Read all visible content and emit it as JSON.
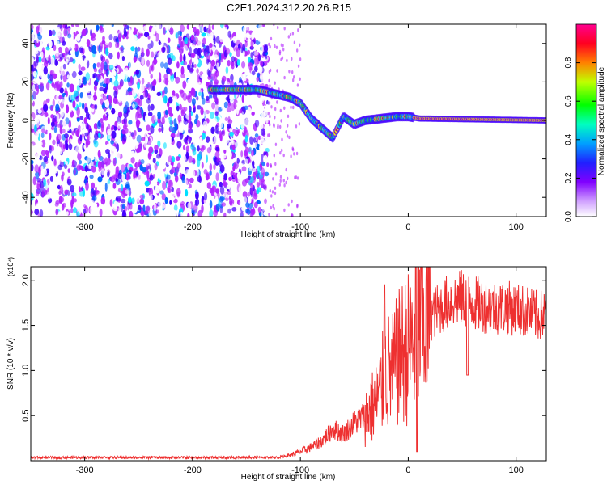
{
  "title": "C2E1.2024.312.20.26.R15",
  "chart_data": [
    {
      "type": "heatmap",
      "xlabel": "Height of straight line (km)",
      "ylabel": "Frequency (Hz)",
      "xlim": [
        -350,
        128
      ],
      "ylim": [
        -50,
        50
      ],
      "xticks": [
        -300,
        -200,
        -100,
        0,
        100
      ],
      "yticks": [
        -40,
        -20,
        0,
        20,
        40
      ],
      "colorbar": {
        "label": "Normalized spectral amplitude",
        "range": [
          0.0,
          1.0
        ],
        "ticks": [
          0.0,
          0.2,
          0.4,
          0.6,
          0.8
        ],
        "tick_labels": [
          "0.0",
          "0.2",
          "0.4",
          "0.6",
          "0.8"
        ],
        "colors": [
          "#ffffff",
          "#b020ff",
          "#4400ff",
          "#0060ff",
          "#00e0ff",
          "#00ff40",
          "#ffff00",
          "#ff8000",
          "#ff0040",
          "#ff0090"
        ]
      },
      "ridge": {
        "description_points": [
          [
            -185,
            16
          ],
          [
            -160,
            16
          ],
          [
            -140,
            16
          ],
          [
            -125,
            14
          ],
          [
            -110,
            12
          ],
          [
            -100,
            9
          ],
          [
            -95,
            5
          ],
          [
            -90,
            1
          ],
          [
            -80,
            -4
          ],
          [
            -70,
            -9
          ],
          [
            -60,
            2
          ],
          [
            -50,
            -2
          ],
          [
            -40,
            0
          ],
          [
            -25,
            1
          ],
          [
            -10,
            2
          ],
          [
            0,
            2
          ],
          [
            10,
            1
          ],
          [
            128,
            0
          ]
        ]
      }
    },
    {
      "type": "line",
      "xlabel": "Height of straight line (km)",
      "ylabel": "SNR (10 * v/v)",
      "y_multiplier": "(x10⁴)",
      "xlim": [
        -350,
        128
      ],
      "ylim": [
        0,
        2.15
      ],
      "xticks": [
        -300,
        -200,
        -100,
        0,
        100
      ],
      "yticks": [
        0.5,
        1.0,
        1.5,
        2.0
      ],
      "ytick_labels": [
        "0.5",
        "1.0",
        "1.5",
        "2.0"
      ],
      "series": [
        {
          "color": "#ee3030",
          "x": [
            -350,
            -300,
            -250,
            -200,
            -150,
            -120,
            -110,
            -100,
            -90,
            -80,
            -70,
            -60,
            -50,
            -40,
            -30,
            -25,
            -20,
            -15,
            -10,
            -5,
            0,
            5,
            10,
            20,
            30,
            40,
            50,
            60,
            70,
            80,
            90,
            100,
            110,
            120,
            128
          ],
          "y": [
            0.03,
            0.03,
            0.03,
            0.03,
            0.03,
            0.04,
            0.06,
            0.1,
            0.15,
            0.22,
            0.35,
            0.3,
            0.42,
            0.5,
            0.65,
            0.8,
            1.0,
            0.95,
            1.1,
            1.2,
            1.25,
            1.3,
            1.5,
            1.6,
            1.7,
            1.78,
            1.8,
            1.75,
            1.72,
            1.7,
            1.7,
            1.68,
            1.65,
            1.6,
            1.62
          ]
        }
      ]
    }
  ]
}
